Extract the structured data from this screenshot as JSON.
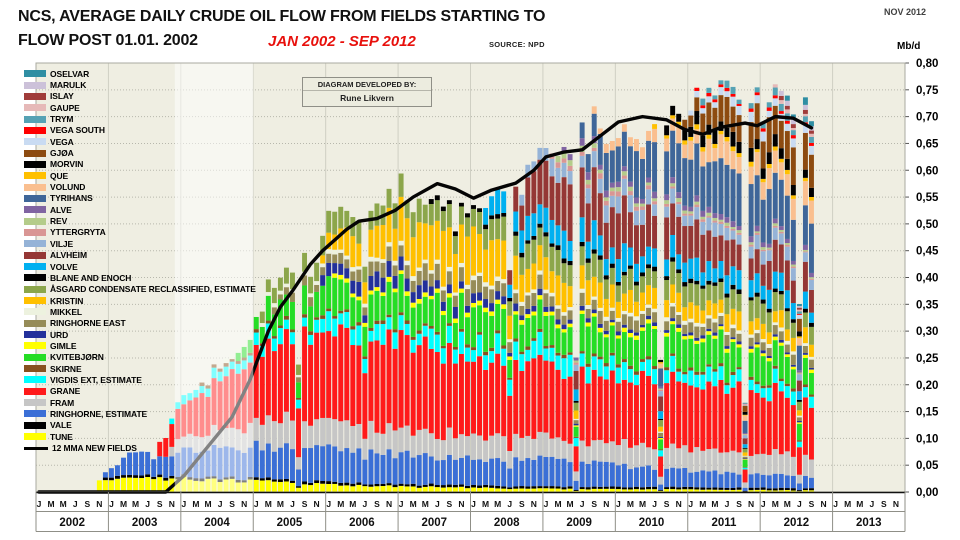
{
  "header": {
    "title_line1": "NCS, AVERAGE DAILY CRUDE OIL FLOW FROM FIELDS STARTING TO",
    "title_line2": "FLOW POST 01.01. 2002",
    "subtitle": "JAN 2002 - SEP 2012",
    "source": "SOURCE: NPD",
    "date_note": "NOV 2012",
    "unit": "Mb/d",
    "credit_label": "DIAGRAM DEVELOPED BY:",
    "credit_name": "Rune Likvern"
  },
  "chart_data": {
    "type": "bar",
    "subtype": "stacked-monthly",
    "x_start": "2002-01",
    "x_data_end": "2012-09",
    "x_axis_end": "2013-12",
    "ylim": [
      0,
      0.8
    ],
    "ytick_step": 0.05,
    "ylabel": "Mb/d",
    "decimal_separator": ",",
    "grid": "dotted-horizontal",
    "legend_position": "left-overlay",
    "years": [
      2002,
      2003,
      2004,
      2005,
      2006,
      2007,
      2008,
      2009,
      2010,
      2011,
      2012,
      2013
    ],
    "month_letters": [
      "J",
      "M",
      "M",
      "J",
      "S",
      "N"
    ],
    "highlight_span": {
      "from_idx": 23,
      "to_idx": 36,
      "fill": "rgba(255,255,255,0.5)"
    },
    "wobble_default": 0.22,
    "dips": {
      "43": 0.55,
      "54": 0.78,
      "78": 0.72,
      "89": 0.4,
      "103": 0.35,
      "117": 0.22,
      "126": 0.5
    },
    "mma_line": {
      "name": "12 MMA NEW FIELDS",
      "color": "#050505",
      "points": [
        [
          0,
          0
        ],
        [
          21,
          0
        ],
        [
          24,
          0.03
        ],
        [
          28,
          0.085
        ],
        [
          32,
          0.14
        ],
        [
          35,
          0.21
        ],
        [
          38,
          0.3
        ],
        [
          40,
          0.345
        ],
        [
          42,
          0.375
        ],
        [
          45,
          0.425
        ],
        [
          47,
          0.45
        ],
        [
          49,
          0.47
        ],
        [
          51,
          0.49
        ],
        [
          53,
          0.505
        ],
        [
          56,
          0.51
        ],
        [
          59,
          0.525
        ],
        [
          62,
          0.55
        ],
        [
          66,
          0.575
        ],
        [
          69,
          0.565
        ],
        [
          72,
          0.548
        ],
        [
          75,
          0.563
        ],
        [
          79,
          0.576
        ],
        [
          82,
          0.6
        ],
        [
          84,
          0.625
        ],
        [
          87,
          0.634
        ],
        [
          90,
          0.638
        ],
        [
          93,
          0.664
        ],
        [
          96,
          0.69
        ],
        [
          100,
          0.7
        ],
        [
          104,
          0.694
        ],
        [
          107,
          0.676
        ],
        [
          110,
          0.667
        ],
        [
          113,
          0.68
        ],
        [
          117,
          0.688
        ],
        [
          119,
          0.683
        ],
        [
          122,
          0.7
        ],
        [
          125,
          0.697
        ],
        [
          128,
          0.679
        ]
      ]
    },
    "series": [
      {
        "name": "TUNE",
        "color": "#FFFF00",
        "w": 0.18,
        "points": [
          [
            9,
            0
          ],
          [
            10,
            0.025
          ],
          [
            24,
            0.025
          ],
          [
            36,
            0.02
          ],
          [
            48,
            0.014
          ],
          [
            60,
            0.01
          ],
          [
            84,
            0.006
          ],
          [
            128,
            0.003
          ]
        ]
      },
      {
        "name": "VALE",
        "color": "#000000",
        "w": 0.15,
        "points": [
          [
            10,
            0
          ],
          [
            11,
            0.005
          ],
          [
            128,
            0.004
          ]
        ]
      },
      {
        "name": "RINGHORNE,  ESTIMATE",
        "color": "#3B6FD6",
        "w": 0.15,
        "points": [
          [
            10,
            0
          ],
          [
            11,
            0.01
          ],
          [
            14,
            0.03
          ],
          [
            16,
            0.045
          ],
          [
            20,
            0.03
          ],
          [
            24,
            0.05
          ],
          [
            36,
            0.06
          ],
          [
            48,
            0.062
          ],
          [
            60,
            0.055
          ],
          [
            72,
            0.05
          ],
          [
            84,
            0.05
          ],
          [
            96,
            0.04
          ],
          [
            108,
            0.03
          ],
          [
            128,
            0.022
          ]
        ]
      },
      {
        "name": "FRAM",
        "color": "#C6C6C6",
        "w": 0.18,
        "points": [
          [
            21,
            0
          ],
          [
            22,
            0.02
          ],
          [
            30,
            0.035
          ],
          [
            40,
            0.05
          ],
          [
            60,
            0.045
          ],
          [
            84,
            0.04
          ],
          [
            128,
            0.04
          ]
        ]
      },
      {
        "name": "GRANE",
        "color": "#FF1A1A",
        "w": 0.12,
        "points": [
          [
            19,
            0
          ],
          [
            20,
            0.03
          ],
          [
            24,
            0.06
          ],
          [
            30,
            0.09
          ],
          [
            36,
            0.13
          ],
          [
            42,
            0.16
          ],
          [
            60,
            0.165
          ],
          [
            72,
            0.15
          ],
          [
            84,
            0.135
          ],
          [
            96,
            0.12
          ],
          [
            110,
            0.125
          ],
          [
            128,
            0.105
          ]
        ]
      },
      {
        "name": "VIGDIS EXT,  ESTIMATE",
        "color": "#00FFFF",
        "w": 0.35,
        "points": [
          [
            21,
            0
          ],
          [
            22,
            0.012
          ],
          [
            36,
            0.02
          ],
          [
            48,
            0.028
          ],
          [
            60,
            0.03
          ],
          [
            84,
            0.032
          ],
          [
            100,
            0.025
          ],
          [
            128,
            0.02
          ]
        ]
      },
      {
        "name": "SKIRNE",
        "color": "#87511F",
        "w": 0.2,
        "points": [
          [
            26,
            0
          ],
          [
            27,
            0.006
          ],
          [
            128,
            0.005
          ]
        ]
      },
      {
        "name": "KVITEBJØRN",
        "color": "#25DD25",
        "w": 0.3,
        "points": [
          [
            32,
            0
          ],
          [
            33,
            0.02
          ],
          [
            40,
            0.045
          ],
          [
            48,
            0.055
          ],
          [
            72,
            0.06
          ],
          [
            96,
            0.055
          ],
          [
            128,
            0.05
          ]
        ]
      },
      {
        "name": "GIMLE",
        "color": "#FFFF00",
        "w": 0.2,
        "points": [
          [
            48,
            0
          ],
          [
            49,
            0.008
          ],
          [
            128,
            0.006
          ]
        ]
      },
      {
        "name": "URD",
        "color": "#23309B",
        "w": 0.25,
        "points": [
          [
            46,
            0
          ],
          [
            47,
            0.022
          ],
          [
            60,
            0.025
          ],
          [
            72,
            0.015
          ],
          [
            84,
            0.01
          ],
          [
            96,
            0.006
          ],
          [
            128,
            0.004
          ]
        ]
      },
      {
        "name": "RINGHORNE EAST",
        "color": "#968C58",
        "w": 0.25,
        "points": [
          [
            38,
            0
          ],
          [
            39,
            0.012
          ],
          [
            50,
            0.02
          ],
          [
            62,
            0.028
          ],
          [
            84,
            0.022
          ],
          [
            128,
            0.016
          ]
        ]
      },
      {
        "name": "MIKKEL",
        "color": "#EDF2DF",
        "w": 0.2,
        "points": [
          [
            30,
            0
          ],
          [
            31,
            0.008
          ],
          [
            128,
            0.006
          ]
        ]
      },
      {
        "name": "KRISTIN",
        "color": "#FFC000",
        "w": 0.25,
        "points": [
          [
            46,
            0
          ],
          [
            47,
            0.02
          ],
          [
            52,
            0.05
          ],
          [
            58,
            0.07
          ],
          [
            66,
            0.09
          ],
          [
            76,
            0.07
          ],
          [
            84,
            0.05
          ],
          [
            96,
            0.035
          ],
          [
            110,
            0.03
          ],
          [
            128,
            0.025
          ]
        ]
      },
      {
        "name": "ÅSGARD CONDENSATE RECLASSIFIED, ESTIMATE",
        "color": "#8CA64B",
        "w": 0.2,
        "points": [
          [
            36,
            0
          ],
          [
            37,
            0.02
          ],
          [
            42,
            0.035
          ],
          [
            60,
            0.04
          ],
          [
            84,
            0.04
          ],
          [
            128,
            0.032
          ]
        ]
      },
      {
        "name": "BLANE AND ENOCH",
        "color": "#000000",
        "w": 0.2,
        "points": [
          [
            64,
            0
          ],
          [
            65,
            0.008
          ],
          [
            128,
            0.007
          ]
        ]
      },
      {
        "name": "VOLVE",
        "color": "#00B0F0",
        "w": 0.3,
        "points": [
          [
            73,
            0
          ],
          [
            74,
            0.03
          ],
          [
            78,
            0.045
          ],
          [
            90,
            0.045
          ],
          [
            108,
            0.035
          ],
          [
            128,
            0.025
          ]
        ]
      },
      {
        "name": "ALVHEIM",
        "color": "#953735",
        "w": 0.22,
        "points": [
          [
            77,
            0
          ],
          [
            78,
            0.04
          ],
          [
            82,
            0.07
          ],
          [
            88,
            0.09
          ],
          [
            96,
            0.075
          ],
          [
            108,
            0.06
          ],
          [
            120,
            0.05
          ],
          [
            128,
            0.048
          ]
        ]
      },
      {
        "name": "VILJE",
        "color": "#95B3D7",
        "w": 0.25,
        "points": [
          [
            79,
            0
          ],
          [
            80,
            0.018
          ],
          [
            84,
            0.028
          ],
          [
            100,
            0.025
          ],
          [
            128,
            0.02
          ]
        ]
      },
      {
        "name": "YTTERGRYTA",
        "color": "#D99694",
        "w": 0.3,
        "points": [
          [
            84,
            0
          ],
          [
            85,
            0.01
          ],
          [
            96,
            0.008
          ],
          [
            110,
            0.004
          ],
          [
            128,
            0.002
          ]
        ]
      },
      {
        "name": "REV",
        "color": "#B4CC8A",
        "w": 0.3,
        "points": [
          [
            85,
            0
          ],
          [
            86,
            0.012
          ],
          [
            92,
            0.008
          ],
          [
            104,
            0.006
          ],
          [
            128,
            0.003
          ]
        ]
      },
      {
        "name": "ALVE",
        "color": "#8064A2",
        "w": 0.25,
        "points": [
          [
            86,
            0
          ],
          [
            87,
            0.012
          ],
          [
            128,
            0.008
          ]
        ]
      },
      {
        "name": "TYRIHANS",
        "color": "#3F6699",
        "w": 0.18,
        "points": [
          [
            89,
            0
          ],
          [
            90,
            0.03
          ],
          [
            94,
            0.06
          ],
          [
            100,
            0.08
          ],
          [
            112,
            0.09
          ],
          [
            128,
            0.085
          ]
        ]
      },
      {
        "name": "VOLUND",
        "color": "#FABF8F",
        "w": 0.3,
        "points": [
          [
            91,
            0
          ],
          [
            92,
            0.012
          ],
          [
            100,
            0.02
          ],
          [
            110,
            0.035
          ],
          [
            128,
            0.035
          ]
        ]
      },
      {
        "name": "QUE",
        "color": "#FFC000",
        "w": 0.25,
        "points": [
          [
            101,
            0
          ],
          [
            102,
            0.008
          ],
          [
            128,
            0.007
          ]
        ]
      },
      {
        "name": "MORVIN",
        "color": "#000000",
        "w": 0.3,
        "points": [
          [
            102,
            0
          ],
          [
            103,
            0.015
          ],
          [
            110,
            0.022
          ],
          [
            128,
            0.02
          ]
        ]
      },
      {
        "name": "GJØA",
        "color": "#8D4B10",
        "w": 0.22,
        "points": [
          [
            106,
            0
          ],
          [
            107,
            0.02
          ],
          [
            112,
            0.05
          ],
          [
            120,
            0.06
          ],
          [
            128,
            0.06
          ]
        ]
      },
      {
        "name": "VEGA",
        "color": "#C9DBF2",
        "w": 0.3,
        "points": [
          [
            107,
            0
          ],
          [
            108,
            0.01
          ],
          [
            114,
            0.015
          ],
          [
            128,
            0.014
          ]
        ]
      },
      {
        "name": "VEGA SOUTH",
        "color": "#FF0000",
        "w": 0.3,
        "points": [
          [
            108,
            0
          ],
          [
            109,
            0.005
          ],
          [
            128,
            0.005
          ]
        ]
      },
      {
        "name": "TRYM",
        "color": "#55A2B4",
        "w": 0.3,
        "points": [
          [
            109,
            0
          ],
          [
            110,
            0.01
          ],
          [
            128,
            0.012
          ]
        ]
      },
      {
        "name": "GAUPE",
        "color": "#E6B9B8",
        "w": 0.3,
        "points": [
          [
            121,
            0
          ],
          [
            122,
            0.006
          ],
          [
            128,
            0.005
          ]
        ]
      },
      {
        "name": "ISLAY",
        "color": "#A03C3A",
        "w": 0.3,
        "points": [
          [
            122,
            0
          ],
          [
            123,
            0.007
          ],
          [
            128,
            0.006
          ]
        ]
      },
      {
        "name": "MARULK",
        "color": "#CCC1D9",
        "w": 0.3,
        "points": [
          [
            122,
            0
          ],
          [
            123,
            0.008
          ],
          [
            128,
            0.008
          ]
        ]
      },
      {
        "name": "OSELVAR",
        "color": "#2F8EA3",
        "w": 0.3,
        "points": [
          [
            123,
            0
          ],
          [
            124,
            0.01
          ],
          [
            128,
            0.012
          ]
        ]
      }
    ]
  },
  "style": {
    "plot_bg": "#EFEEE2",
    "grid_color": "#b7b7ac",
    "year_sep_color": "#cfcfc3",
    "axis_color": "#8f8f87",
    "baseline_color": "#111111"
  }
}
